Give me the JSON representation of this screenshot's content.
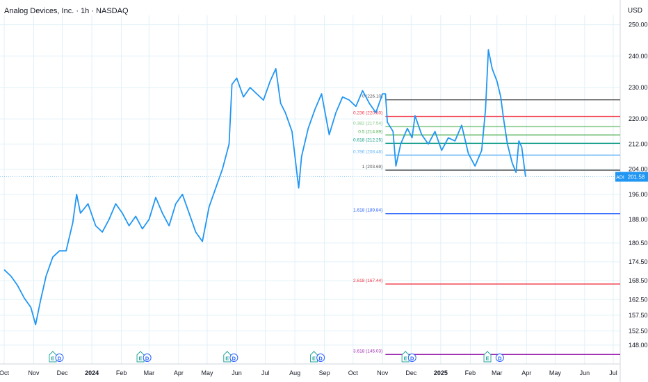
{
  "header": {
    "title": "Analog Devices, Inc. · 1h · NASDAQ",
    "currency": "USD"
  },
  "chart_data": {
    "type": "line",
    "symbol": "ADI",
    "last_price": "201.58",
    "colors": {
      "price_line": "#2196f3",
      "grid": "#e0f0f8",
      "axis_text": "#131722",
      "fib_0": "#555555",
      "fib_0236": "#f23645",
      "fib_0382": "#81c784",
      "fib_05": "#4caf50",
      "fib_0618": "#089981",
      "fib_0786": "#64b5f6",
      "fib_1": "#555555",
      "fib_1618": "#2962ff",
      "fib_2618": "#f23645",
      "fib_3618": "#9c27b0",
      "badge_e": "#26a69a",
      "badge_d": "#2962ff"
    },
    "ylim": [
      142,
      253
    ],
    "y_ticks": [
      "250.00",
      "240.00",
      "230.00",
      "220.00",
      "212.00",
      "204.00",
      "196.00",
      "188.00",
      "180.50",
      "174.50",
      "168.50",
      "162.50",
      "157.50",
      "152.50",
      "148.00"
    ],
    "y_tick_values": [
      250,
      240,
      230,
      220,
      212,
      204,
      196,
      188,
      180.5,
      174.5,
      168.5,
      162.5,
      157.5,
      152.5,
      148
    ],
    "x_tick_labels": [
      "Oct",
      "Nov",
      "Dec",
      "2024",
      "Feb",
      "Mar",
      "Apr",
      "May",
      "Jun",
      "Jul",
      "Aug",
      "Sep",
      "Oct",
      "Nov",
      "Dec",
      "2025",
      "Feb",
      "Mar",
      "Apr",
      "May",
      "Jun",
      "Jul"
    ],
    "x_tick_dates": [
      "2023-10-01",
      "2023-11-01",
      "2023-12-01",
      "2024-01-01",
      "2024-02-01",
      "2024-03-01",
      "2024-04-01",
      "2024-05-01",
      "2024-06-01",
      "2024-07-01",
      "2024-08-01",
      "2024-09-01",
      "2024-10-01",
      "2024-11-01",
      "2024-12-01",
      "2025-01-01",
      "2025-02-01",
      "2025-03-01",
      "2025-04-01",
      "2025-05-01",
      "2025-06-01",
      "2025-07-01"
    ],
    "bold_x_labels": [
      "2024",
      "2025"
    ],
    "series": [
      {
        "points": [
          [
            "2023-10-01",
            172
          ],
          [
            "2023-10-08",
            170
          ],
          [
            "2023-10-15",
            167
          ],
          [
            "2023-10-22",
            163
          ],
          [
            "2023-10-29",
            160
          ],
          [
            "2023-11-03",
            154.5
          ],
          [
            "2023-11-08",
            162
          ],
          [
            "2023-11-14",
            170
          ],
          [
            "2023-11-21",
            176
          ],
          [
            "2023-11-28",
            178
          ],
          [
            "2023-12-05",
            178
          ],
          [
            "2023-12-12",
            187
          ],
          [
            "2023-12-16",
            196
          ],
          [
            "2023-12-20",
            190
          ],
          [
            "2023-12-28",
            193
          ],
          [
            "2024-01-05",
            186
          ],
          [
            "2024-01-12",
            184
          ],
          [
            "2024-01-19",
            188
          ],
          [
            "2024-01-26",
            193
          ],
          [
            "2024-02-02",
            190
          ],
          [
            "2024-02-09",
            186
          ],
          [
            "2024-02-16",
            189
          ],
          [
            "2024-02-23",
            185
          ],
          [
            "2024-03-01",
            188
          ],
          [
            "2024-03-08",
            195
          ],
          [
            "2024-03-15",
            190
          ],
          [
            "2024-03-22",
            186
          ],
          [
            "2024-03-29",
            193
          ],
          [
            "2024-04-05",
            196
          ],
          [
            "2024-04-12",
            190
          ],
          [
            "2024-04-19",
            184
          ],
          [
            "2024-04-26",
            181
          ],
          [
            "2024-05-03",
            192
          ],
          [
            "2024-05-10",
            198
          ],
          [
            "2024-05-17",
            204
          ],
          [
            "2024-05-24",
            212
          ],
          [
            "2024-05-27",
            231
          ],
          [
            "2024-06-01",
            233
          ],
          [
            "2024-06-08",
            227
          ],
          [
            "2024-06-15",
            230
          ],
          [
            "2024-06-22",
            228
          ],
          [
            "2024-06-29",
            226
          ],
          [
            "2024-07-06",
            232
          ],
          [
            "2024-07-12",
            236
          ],
          [
            "2024-07-17",
            225
          ],
          [
            "2024-07-22",
            222
          ],
          [
            "2024-07-29",
            216
          ],
          [
            "2024-08-05",
            198
          ],
          [
            "2024-08-08",
            208
          ],
          [
            "2024-08-15",
            217
          ],
          [
            "2024-08-22",
            223
          ],
          [
            "2024-08-29",
            228
          ],
          [
            "2024-09-06",
            215
          ],
          [
            "2024-09-13",
            222
          ],
          [
            "2024-09-20",
            227
          ],
          [
            "2024-09-27",
            226
          ],
          [
            "2024-10-04",
            224
          ],
          [
            "2024-10-11",
            229
          ],
          [
            "2024-10-18",
            225
          ],
          [
            "2024-10-25",
            222
          ],
          [
            "2024-11-01",
            228
          ],
          [
            "2024-11-04",
            228
          ],
          [
            "2024-11-06",
            219
          ],
          [
            "2024-11-12",
            216
          ],
          [
            "2024-11-15",
            205
          ],
          [
            "2024-11-20",
            212
          ],
          [
            "2024-11-27",
            217
          ],
          [
            "2024-12-02",
            214
          ],
          [
            "2024-12-05",
            221
          ],
          [
            "2024-12-12",
            215
          ],
          [
            "2024-12-19",
            212
          ],
          [
            "2024-12-26",
            216
          ],
          [
            "2025-01-02",
            210
          ],
          [
            "2025-01-09",
            214
          ],
          [
            "2025-01-16",
            213
          ],
          [
            "2025-01-23",
            218
          ],
          [
            "2025-01-30",
            209
          ],
          [
            "2025-02-06",
            205
          ],
          [
            "2025-02-13",
            210
          ],
          [
            "2025-02-17",
            223
          ],
          [
            "2025-02-20",
            242
          ],
          [
            "2025-02-24",
            236
          ],
          [
            "2025-03-01",
            232
          ],
          [
            "2025-03-05",
            227
          ],
          [
            "2025-03-08",
            220
          ],
          [
            "2025-03-12",
            212
          ],
          [
            "2025-03-17",
            206
          ],
          [
            "2025-03-21",
            203
          ],
          [
            "2025-03-24",
            213
          ],
          [
            "2025-03-27",
            211
          ],
          [
            "2025-03-31",
            201.58
          ]
        ]
      }
    ],
    "fib_levels": [
      {
        "label": "0 (226.10)",
        "value": 226.1,
        "color_key": "fib_0",
        "start": "2024-11-04"
      },
      {
        "label": "0.236 (220.80)",
        "value": 220.8,
        "color_key": "fib_0236",
        "start": "2024-11-04"
      },
      {
        "label": "0.382 (217.54)",
        "value": 217.54,
        "color_key": "fib_0382",
        "start": "2024-11-04"
      },
      {
        "label": "0.5 (214.89)",
        "value": 214.89,
        "color_key": "fib_05",
        "start": "2024-11-04"
      },
      {
        "label": "0.618 (212.25)",
        "value": 212.25,
        "color_key": "fib_0618",
        "start": "2024-11-04"
      },
      {
        "label": "0.786 (208.48)",
        "value": 208.48,
        "color_key": "fib_0786",
        "start": "2024-11-04"
      },
      {
        "label": "1 (203.69)",
        "value": 203.69,
        "color_key": "fib_1",
        "start": "2024-11-04"
      },
      {
        "label": "1.618 (189.84)",
        "value": 189.84,
        "color_key": "fib_1618",
        "start": "2024-11-04"
      },
      {
        "label": "2.618 (167.44)",
        "value": 167.44,
        "color_key": "fib_2618",
        "start": "2024-11-04"
      },
      {
        "label": "3.618 (145.03)",
        "value": 145.03,
        "color_key": "fib_3618",
        "start": "2024-11-04"
      }
    ],
    "events": [
      {
        "type": "E",
        "date": "2023-11-21"
      },
      {
        "type": "D",
        "date": "2023-11-28"
      },
      {
        "type": "E",
        "date": "2024-02-21"
      },
      {
        "type": "D",
        "date": "2024-02-28"
      },
      {
        "type": "E",
        "date": "2024-05-22"
      },
      {
        "type": "D",
        "date": "2024-05-29"
      },
      {
        "type": "E",
        "date": "2024-08-21"
      },
      {
        "type": "D",
        "date": "2024-08-28"
      },
      {
        "type": "E",
        "date": "2024-11-25"
      },
      {
        "type": "D",
        "date": "2024-12-02"
      },
      {
        "type": "E",
        "date": "2025-02-19"
      },
      {
        "type": "D",
        "date": "2025-03-04"
      }
    ]
  }
}
